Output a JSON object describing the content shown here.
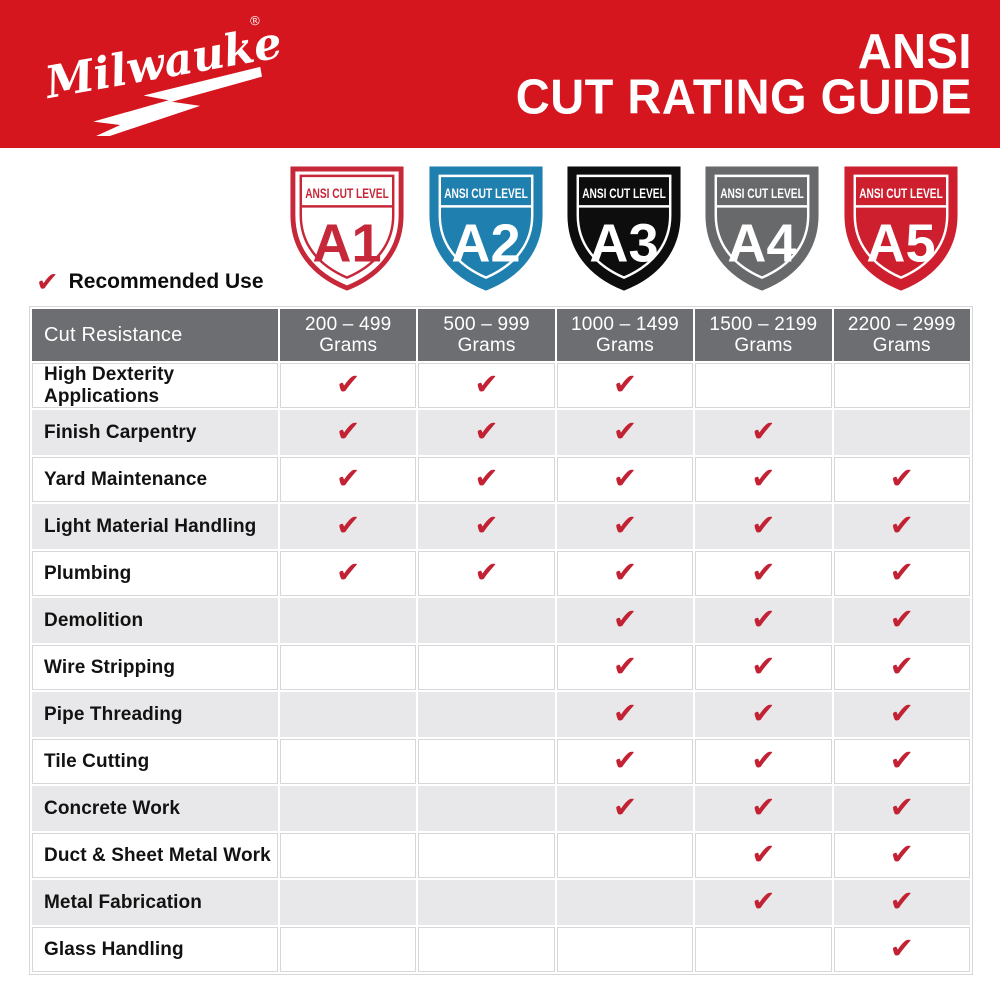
{
  "colors": {
    "brand_red": "#d5161f",
    "check_red": "#c22233",
    "header_gray": "#6d6e71",
    "row_alt": "#e8e8ea",
    "cell_line": "#d7d7d9"
  },
  "masthead": {
    "brand": "Milwaukee",
    "registered_mark": "®",
    "title_line1": "ANSI",
    "title_line2": "CUT RATING GUIDE"
  },
  "legend": {
    "check_icon": "✔",
    "label": "Recommended Use"
  },
  "shields": [
    {
      "band_label": "ANSI CUT LEVEL",
      "level": "A1",
      "bg": "#ffffff",
      "fg": "#c62839",
      "outer_stroke": "#c62839"
    },
    {
      "band_label": "ANSI CUT LEVEL",
      "level": "A2",
      "bg": "#1f7fae",
      "fg": "#ffffff",
      "outer_stroke": "#1f7fae"
    },
    {
      "band_label": "ANSI CUT LEVEL",
      "level": "A3",
      "bg": "#0d0d0d",
      "fg": "#ffffff",
      "outer_stroke": "#0d0d0d"
    },
    {
      "band_label": "ANSI CUT LEVEL",
      "level": "A4",
      "bg": "#68696b",
      "fg": "#ffffff",
      "outer_stroke": "#68696b"
    },
    {
      "band_label": "ANSI CUT LEVEL",
      "level": "A5",
      "bg": "#ce1f2f",
      "fg": "#ffffff",
      "outer_stroke": "#ce1f2f"
    }
  ],
  "table": {
    "corner_header": "Cut Resistance",
    "check_icon": "✔",
    "columns": [
      {
        "range": "200 – 499",
        "unit": "Grams"
      },
      {
        "range": "500 – 999",
        "unit": "Grams"
      },
      {
        "range": "1000 – 1499",
        "unit": "Grams"
      },
      {
        "range": "1500 – 2199",
        "unit": "Grams"
      },
      {
        "range": "2200 – 2999",
        "unit": "Grams"
      }
    ],
    "rows": [
      {
        "label": "High Dexterity Applications",
        "checks": [
          true,
          true,
          true,
          false,
          false
        ]
      },
      {
        "label": "Finish Carpentry",
        "checks": [
          true,
          true,
          true,
          true,
          false
        ]
      },
      {
        "label": "Yard Maintenance",
        "checks": [
          true,
          true,
          true,
          true,
          true
        ]
      },
      {
        "label": "Light Material Handling",
        "checks": [
          true,
          true,
          true,
          true,
          true
        ]
      },
      {
        "label": "Plumbing",
        "checks": [
          true,
          true,
          true,
          true,
          true
        ]
      },
      {
        "label": "Demolition",
        "checks": [
          false,
          false,
          true,
          true,
          true
        ]
      },
      {
        "label": "Wire Stripping",
        "checks": [
          false,
          false,
          true,
          true,
          true
        ]
      },
      {
        "label": "Pipe Threading",
        "checks": [
          false,
          false,
          true,
          true,
          true
        ]
      },
      {
        "label": "Tile Cutting",
        "checks": [
          false,
          false,
          true,
          true,
          true
        ]
      },
      {
        "label": "Concrete Work",
        "checks": [
          false,
          false,
          true,
          true,
          true
        ]
      },
      {
        "label": "Duct & Sheet Metal Work",
        "checks": [
          false,
          false,
          false,
          true,
          true
        ]
      },
      {
        "label": "Metal Fabrication",
        "checks": [
          false,
          false,
          false,
          true,
          true
        ]
      },
      {
        "label": "Glass Handling",
        "checks": [
          false,
          false,
          false,
          false,
          true
        ]
      }
    ]
  }
}
